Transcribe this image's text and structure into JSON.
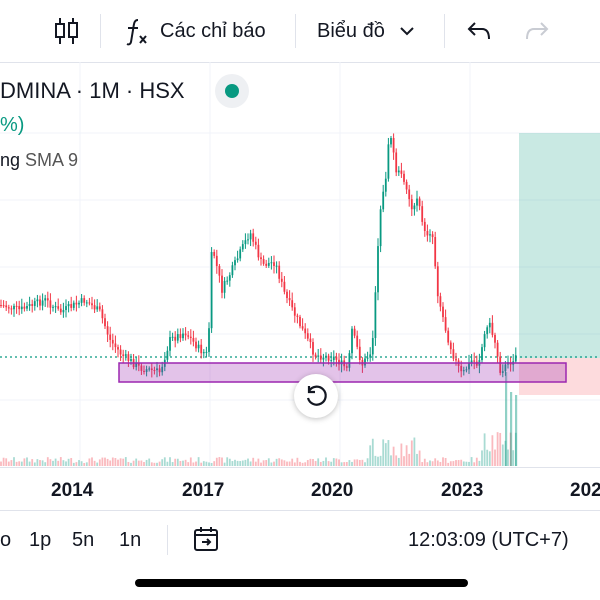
{
  "toolbar": {
    "indicators_label": "Các chỉ báo",
    "chart_type_label": "Biểu đồ"
  },
  "legend": {
    "symbol_text": "DMINA · 1M · HSX",
    "change_text": "%)",
    "indicator_prefix": "ng",
    "indicator_name": "SMA 9"
  },
  "xaxis": {
    "labels": [
      "2014",
      "2017",
      "2020",
      "2023",
      "202"
    ]
  },
  "bottom": {
    "ranges": [
      "o",
      "1p",
      "5n",
      "1n"
    ],
    "clock": "12:03:09 (UTC+7)"
  },
  "colors": {
    "up": "#089981",
    "down": "#f23645",
    "zone": "#9c27b0",
    "accent": "#089981"
  },
  "icons": {
    "candles": "candlestick-icon",
    "fx": "function-icon",
    "undo": "undo-icon",
    "redo": "redo-icon",
    "chevron": "chevron-down-icon",
    "reset": "reset-icon",
    "goto": "goto-date-icon"
  }
}
